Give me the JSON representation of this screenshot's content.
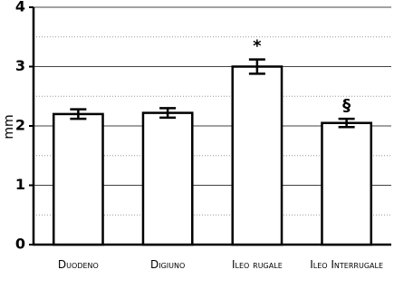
{
  "chart_data": {
    "type": "bar",
    "y_label": "mm",
    "categories": [
      "Duodeno",
      "Digiuno",
      "Ileo rugale",
      "Ileo Interrugale"
    ],
    "values": [
      2.2,
      2.22,
      3.0,
      2.05
    ],
    "errors": [
      0.08,
      0.08,
      0.12,
      0.07
    ],
    "annotations": [
      null,
      null,
      "*",
      "§"
    ],
    "color": "#ffffff",
    "edge_color": "#000000",
    "ylim": [
      0,
      4
    ],
    "yticks": [
      0,
      1,
      2,
      3,
      4
    ],
    "minor_yticks": [
      0.5,
      1.5,
      2.5,
      3.5
    ],
    "grid": true
  }
}
